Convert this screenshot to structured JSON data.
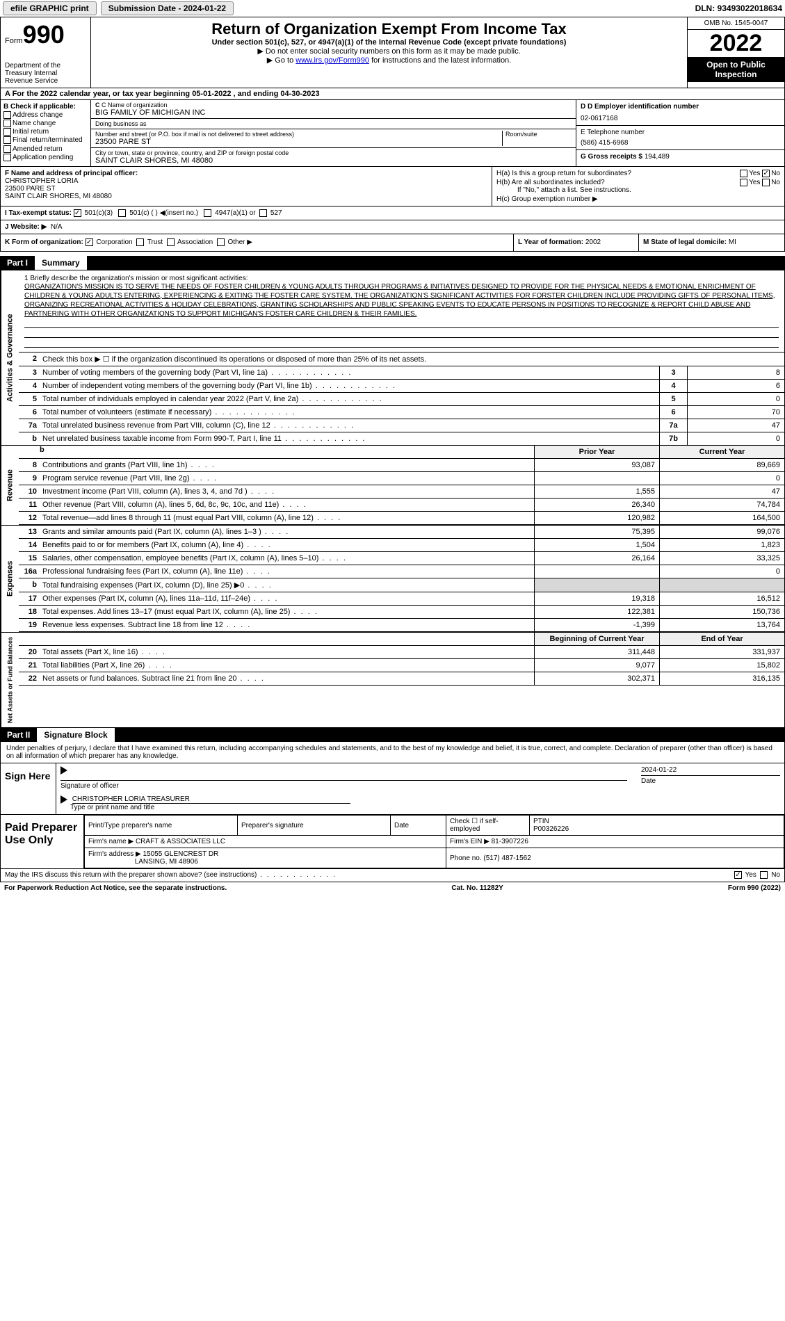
{
  "topbar": {
    "efile_label": "efile GRAPHIC print",
    "submission_label": "Submission Date - 2024-01-22",
    "dln_label": "DLN: 93493022018634"
  },
  "header": {
    "form_word": "Form",
    "form_number": "990",
    "dept": "Department of the Treasury Internal Revenue Service",
    "title": "Return of Organization Exempt From Income Tax",
    "subtitle": "Under section 501(c), 527, or 4947(a)(1) of the Internal Revenue Code (except private foundations)",
    "note1": "▶ Do not enter social security numbers on this form as it may be made public.",
    "note2_pre": "▶ Go to ",
    "note2_link": "www.irs.gov/Form990",
    "note2_post": " for instructions and the latest information.",
    "omb": "OMB No. 1545-0047",
    "year": "2022",
    "inspect": "Open to Public Inspection"
  },
  "rowA": "A For the 2022 calendar year, or tax year beginning 05-01-2022   , and ending 04-30-2023",
  "colB": {
    "header": "B Check if applicable:",
    "items": [
      "Address change",
      "Name change",
      "Initial return",
      "Final return/terminated",
      "Amended return",
      "Application pending"
    ]
  },
  "colC": {
    "name_lbl": "C Name of organization",
    "name": "BIG FAMILY OF MICHIGAN INC",
    "dba_lbl": "Doing business as",
    "dba": "",
    "addr_lbl": "Number and street (or P.O. box if mail is not delivered to street address)",
    "room_lbl": "Room/suite",
    "addr": "23500 PARE ST",
    "city_lbl": "City or town, state or province, country, and ZIP or foreign postal code",
    "city": "SAINT CLAIR SHORES, MI  48080"
  },
  "colD": {
    "ein_lbl": "D Employer identification number",
    "ein": "02-0617168",
    "tel_lbl": "E Telephone number",
    "tel": "(586) 415-6968",
    "gross_lbl": "G Gross receipts $",
    "gross": "194,489"
  },
  "f": {
    "lbl": "F  Name and address of principal officer:",
    "name": "CHRISTOPHER LORIA",
    "addr1": "23500 PARE ST",
    "addr2": "SAINT CLAIR SHORES, MI  48080"
  },
  "h": {
    "a": "H(a)  Is this a group return for subordinates?",
    "b": "H(b)  Are all subordinates included?",
    "b_note": "If \"No,\" attach a list. See instructions.",
    "c": "H(c)  Group exemption number ▶",
    "yes": "Yes",
    "no": "No"
  },
  "i": {
    "lbl": "I   Tax-exempt status:",
    "opts": [
      "501(c)(3)",
      "501(c) (  ) ◀(insert no.)",
      "4947(a)(1) or",
      "527"
    ]
  },
  "j": {
    "lbl": "J   Website: ▶",
    "val": "N/A"
  },
  "k": {
    "lbl": "K Form of organization:",
    "opts": [
      "Corporation",
      "Trust",
      "Association",
      "Other ▶"
    ]
  },
  "l": {
    "lbl": "L Year of formation:",
    "val": "2002"
  },
  "m": {
    "lbl": "M State of legal domicile:",
    "val": "MI"
  },
  "parts": {
    "p1_tag": "Part I",
    "p1_title": "Summary",
    "p2_tag": "Part II",
    "p2_title": "Signature Block"
  },
  "vlabels": {
    "gov": "Activities & Governance",
    "rev": "Revenue",
    "exp": "Expenses",
    "net": "Net Assets or Fund Balances"
  },
  "mission": {
    "q": "1    Briefly describe the organization's mission or most significant activities:",
    "text": "ORGANIZATION'S MISSION IS TO SERVE THE NEEDS OF FOSTER CHILDREN & YOUNG ADULTS THROUGH PROGRAMS & INITIATIVES DESIGNED TO PROVIDE FOR THE PHYSICAL NEEDS & EMOTIONAL ENRICHMENT OF CHILDREN & YOUNG ADULTS ENTERING, EXPERIENCING & EXITING THE FOSTER CARE SYSTEM. THE ORGANIZATION'S SIGNIFICANT ACTIVITIES FOR FORSTER CHILDREN INCLUDE PROVIDING GIFTS OF PERSONAL ITEMS, ORGANIZING RECREATIONAL ACTIVITIES & HOLIDAY CELEBRATIONS, GRANTING SCHOLARSHIPS AND PUBLIC SPEAKING EVENTS TO EDUCATE PERSONS IN POSITIONS TO RECOGNIZE & REPORT CHILD ABUSE AND PARTNERING WITH OTHER ORGANIZATIONS TO SUPPORT MICHIGAN'S FOSTER CARE CHILDREN & THEIR FAMILIES."
  },
  "gov_rows": [
    {
      "n": "2",
      "d": "Check this box ▶ ☐ if the organization discontinued its operations or disposed of more than 25% of its net assets.",
      "box": "",
      "val": ""
    },
    {
      "n": "3",
      "d": "Number of voting members of the governing body (Part VI, line 1a)",
      "box": "3",
      "val": "8"
    },
    {
      "n": "4",
      "d": "Number of independent voting members of the governing body (Part VI, line 1b)",
      "box": "4",
      "val": "6"
    },
    {
      "n": "5",
      "d": "Total number of individuals employed in calendar year 2022 (Part V, line 2a)",
      "box": "5",
      "val": "0"
    },
    {
      "n": "6",
      "d": "Total number of volunteers (estimate if necessary)",
      "box": "6",
      "val": "70"
    },
    {
      "n": "7a",
      "d": "Total unrelated business revenue from Part VIII, column (C), line 12",
      "box": "7a",
      "val": "47"
    },
    {
      "n": "b",
      "d": "Net unrelated business taxable income from Form 990-T, Part I, line 11",
      "box": "7b",
      "val": "0"
    }
  ],
  "year_headers": {
    "prior": "Prior Year",
    "current": "Current Year",
    "boy": "Beginning of Current Year",
    "eoy": "End of Year"
  },
  "rev_rows": [
    {
      "n": "8",
      "d": "Contributions and grants (Part VIII, line 1h)",
      "c1": "93,087",
      "c2": "89,669"
    },
    {
      "n": "9",
      "d": "Program service revenue (Part VIII, line 2g)",
      "c1": "",
      "c2": "0"
    },
    {
      "n": "10",
      "d": "Investment income (Part VIII, column (A), lines 3, 4, and 7d )",
      "c1": "1,555",
      "c2": "47"
    },
    {
      "n": "11",
      "d": "Other revenue (Part VIII, column (A), lines 5, 6d, 8c, 9c, 10c, and 11e)",
      "c1": "26,340",
      "c2": "74,784"
    },
    {
      "n": "12",
      "d": "Total revenue—add lines 8 through 11 (must equal Part VIII, column (A), line 12)",
      "c1": "120,982",
      "c2": "164,500"
    }
  ],
  "exp_rows": [
    {
      "n": "13",
      "d": "Grants and similar amounts paid (Part IX, column (A), lines 1–3 )",
      "c1": "75,395",
      "c2": "99,076"
    },
    {
      "n": "14",
      "d": "Benefits paid to or for members (Part IX, column (A), line 4)",
      "c1": "1,504",
      "c2": "1,823"
    },
    {
      "n": "15",
      "d": "Salaries, other compensation, employee benefits (Part IX, column (A), lines 5–10)",
      "c1": "26,164",
      "c2": "33,325"
    },
    {
      "n": "16a",
      "d": "Professional fundraising fees (Part IX, column (A), line 11e)",
      "c1": "",
      "c2": "0"
    },
    {
      "n": "b",
      "d": "Total fundraising expenses (Part IX, column (D), line 25) ▶0",
      "c1": "shade",
      "c2": "shade"
    },
    {
      "n": "17",
      "d": "Other expenses (Part IX, column (A), lines 11a–11d, 11f–24e)",
      "c1": "19,318",
      "c2": "16,512"
    },
    {
      "n": "18",
      "d": "Total expenses. Add lines 13–17 (must equal Part IX, column (A), line 25)",
      "c1": "122,381",
      "c2": "150,736"
    },
    {
      "n": "19",
      "d": "Revenue less expenses. Subtract line 18 from line 12",
      "c1": "-1,399",
      "c2": "13,764"
    }
  ],
  "net_rows": [
    {
      "n": "20",
      "d": "Total assets (Part X, line 16)",
      "c1": "311,448",
      "c2": "331,937"
    },
    {
      "n": "21",
      "d": "Total liabilities (Part X, line 26)",
      "c1": "9,077",
      "c2": "15,802"
    },
    {
      "n": "22",
      "d": "Net assets or fund balances. Subtract line 21 from line 20",
      "c1": "302,371",
      "c2": "316,135"
    }
  ],
  "sig_decl": "Under penalties of perjury, I declare that I have examined this return, including accompanying schedules and statements, and to the best of my knowledge and belief, it is true, correct, and complete. Declaration of preparer (other than officer) is based on all information of which preparer has any knowledge.",
  "sign": {
    "here": "Sign Here",
    "sig_lbl": "Signature of officer",
    "date_lbl": "Date",
    "date": "2024-01-22",
    "name": "CHRISTOPHER LORIA  TREASURER",
    "name_lbl": "Type or print name and title"
  },
  "prep": {
    "title": "Paid Preparer Use Only",
    "h1": "Print/Type preparer's name",
    "h2": "Preparer's signature",
    "h3": "Date",
    "h4_a": "Check ☐ if self-employed",
    "h4_b": "PTIN",
    "ptin": "P00326226",
    "firm_name_lbl": "Firm's name    ▶",
    "firm_name": "CRAFT & ASSOCIATES LLC",
    "firm_ein_lbl": "Firm's EIN ▶",
    "firm_ein": "81-3907226",
    "firm_addr_lbl": "Firm's address ▶",
    "firm_addr": "15055 GLENCREST DR",
    "firm_city": "LANSING, MI  48906",
    "phone_lbl": "Phone no.",
    "phone": "(517) 487-1562"
  },
  "discuss": {
    "q": "May the IRS discuss this return with the preparer shown above? (see instructions)",
    "yes": "Yes",
    "no": "No"
  },
  "footer": {
    "pra": "For Paperwork Reduction Act Notice, see the separate instructions.",
    "cat": "Cat. No. 11282Y",
    "form": "Form 990 (2022)"
  },
  "colors": {
    "link": "#0000cc",
    "black": "#000000",
    "shade": "#d8d8d8"
  }
}
